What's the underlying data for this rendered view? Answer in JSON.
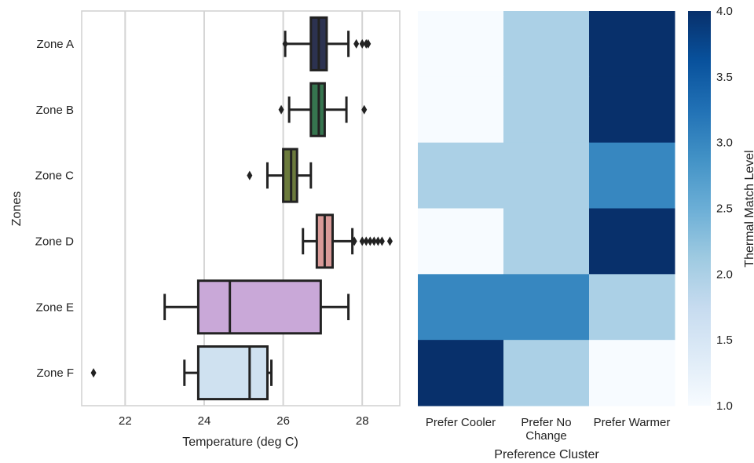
{
  "chart_data": [
    {
      "type": "box",
      "orientation": "horizontal",
      "xlabel": "Temperature (deg C)",
      "ylabel": "Zones",
      "xlim": [
        20.9,
        28.95
      ],
      "xticks": [
        "22",
        "24",
        "26",
        "28"
      ],
      "grid": "vertical",
      "categories": [
        "Zone A",
        "Zone B",
        "Zone C",
        "Zone D",
        "Zone E",
        "Zone F"
      ],
      "boxes": [
        {
          "name": "Zone A",
          "color": "#2c3250",
          "whisker_low": 26.05,
          "q1": 26.7,
          "median": 26.9,
          "q3": 27.1,
          "whisker_high": 27.65,
          "outliers": [
            26.05,
            27.85,
            28.0,
            28.1,
            28.15
          ]
        },
        {
          "name": "Zone B",
          "color": "#36754f",
          "whisker_low": 26.15,
          "q1": 26.7,
          "median": 26.9,
          "q3": 27.05,
          "whisker_high": 27.6,
          "outliers": [
            25.95,
            28.05
          ]
        },
        {
          "name": "Zone C",
          "color": "#6b7a3c",
          "whisker_low": 25.6,
          "q1": 26.0,
          "median": 26.2,
          "q3": 26.35,
          "whisker_high": 26.7,
          "outliers": [
            25.15
          ]
        },
        {
          "name": "Zone D",
          "color": "#d99a98",
          "whisker_low": 26.5,
          "q1": 26.85,
          "median": 27.05,
          "q3": 27.25,
          "whisker_high": 27.75,
          "outliers": [
            27.8,
            28.0,
            28.1,
            28.2,
            28.3,
            28.4,
            28.5,
            28.7
          ]
        },
        {
          "name": "Zone E",
          "color": "#c9a8d8",
          "whisker_low": 23.0,
          "q1": 23.85,
          "median": 24.65,
          "q3": 26.95,
          "whisker_high": 27.65,
          "outliers": []
        },
        {
          "name": "Zone F",
          "color": "#cfe1f0",
          "whisker_low": 23.5,
          "q1": 23.85,
          "median": 25.15,
          "q3": 25.6,
          "whisker_high": 25.7,
          "outliers": [
            21.2
          ]
        }
      ]
    },
    {
      "type": "heatmap",
      "xlabel": "Preference Cluster",
      "x_categories": [
        [
          "Prefer Cooler"
        ],
        [
          "Prefer No",
          "Change"
        ],
        [
          "Prefer Warmer"
        ]
      ],
      "rows": 6,
      "values": [
        [
          1,
          2,
          4
        ],
        [
          1,
          2,
          4
        ],
        [
          2,
          2,
          3
        ],
        [
          1,
          2,
          4
        ],
        [
          3,
          3,
          2
        ],
        [
          4,
          2,
          1
        ]
      ],
      "colorbar": {
        "label": "Thermal Match Level",
        "range": [
          1.0,
          4.0
        ],
        "ticks": [
          "1.0",
          "1.5",
          "2.0",
          "2.5",
          "3.0",
          "3.5",
          "4.0"
        ],
        "colormap": "Blues",
        "low_color": "#f7fbff",
        "high_color": "#08306b"
      }
    }
  ]
}
